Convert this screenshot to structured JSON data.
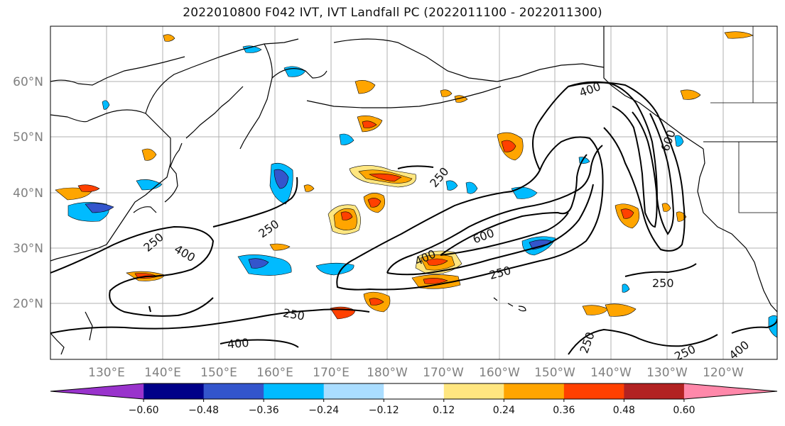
{
  "title": "2022010800 F042 IVT, IVT Landfall PC (2022011100 - 2022011300)",
  "lat_labels": [
    "60°N",
    "50°N",
    "40°N",
    "30°N",
    "20°N"
  ],
  "lon_labels": [
    "130°E",
    "140°E",
    "150°E",
    "160°E",
    "170°E",
    "180°W",
    "170°W",
    "160°W",
    "150°W",
    "140°W",
    "130°W",
    "120°W"
  ],
  "contour_labels": {
    "c250_a": "250",
    "c250_b": "250",
    "c250_c": "250",
    "c250_d": "250",
    "c250_e": "250",
    "c250_f": "250",
    "c250_g": "250",
    "c250_h": "250",
    "c400_a": "400",
    "c400_b": "400",
    "c400_c": "400",
    "c400_d": "400",
    "c400_e": "400",
    "c600_a": "600",
    "c600_b": "600"
  },
  "colorbar": {
    "tick_labels": [
      "−0.60",
      "−0.48",
      "−0.36",
      "−0.24",
      "−0.12",
      "0.12",
      "0.24",
      "0.36",
      "0.48",
      "0.60"
    ],
    "colors": [
      "#9933cc",
      "#000088",
      "#3355cc",
      "#00bbff",
      "#aaddff",
      "#ffffff",
      "#ffe680",
      "#ffa500",
      "#ff4000",
      "#b22222",
      "#ff88aa"
    ]
  },
  "colors": {
    "land_outline": "#000000",
    "contour": "#000000",
    "grid": "#b0b0b0"
  }
}
